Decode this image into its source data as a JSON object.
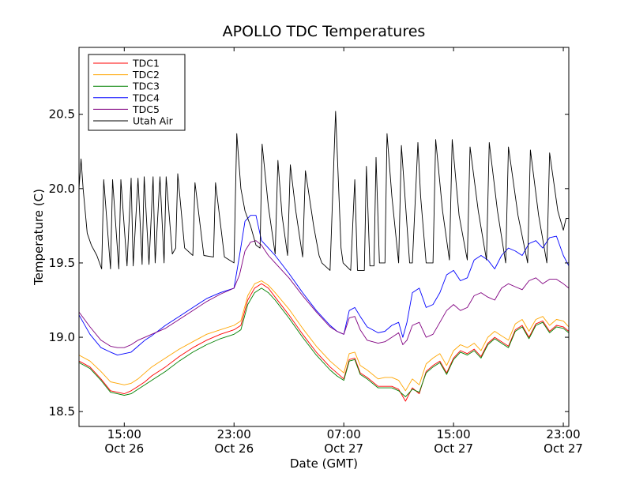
{
  "chart_data": {
    "type": "line",
    "title": "APOLLO TDC Temperatures",
    "xlabel": "Date (GMT)",
    "ylabel": "Temperature (C)",
    "xlim": [
      11.7,
      47.4
    ],
    "ylim": [
      18.4,
      20.95
    ],
    "x_unit": "hours since Oct 26 00:00 GMT",
    "x_ticks": [
      {
        "x": 15,
        "line1": "15:00",
        "line2": "Oct 26"
      },
      {
        "x": 23,
        "line1": "23:00",
        "line2": "Oct 26"
      },
      {
        "x": 31,
        "line1": "07:00",
        "line2": "Oct 27"
      },
      {
        "x": 39,
        "line1": "15:00",
        "line2": "Oct 27"
      },
      {
        "x": 47,
        "line1": "23:00",
        "line2": "Oct 27"
      }
    ],
    "y_ticks": [
      {
        "y": 18.5,
        "label": "18.5"
      },
      {
        "y": 19.0,
        "label": "19.0"
      },
      {
        "y": 19.5,
        "label": "19.5"
      },
      {
        "y": 20.0,
        "label": "20.0"
      },
      {
        "y": 20.5,
        "label": "20.5"
      }
    ],
    "legend_position": "top-left",
    "series": [
      {
        "name": "TDC1",
        "color": "#ff0000",
        "x": [
          11.7,
          12.5,
          13.3,
          14.0,
          14.5,
          15.0,
          15.5,
          16.0,
          16.5,
          17.0,
          18.0,
          19.0,
          20.0,
          21.0,
          22.0,
          23.0,
          23.5,
          24.0,
          24.5,
          25.0,
          25.5,
          26.0,
          27.0,
          28.0,
          29.0,
          30.0,
          30.5,
          31.0,
          31.4,
          31.8,
          32.2,
          32.7,
          33.5,
          34.0,
          34.5,
          35.0,
          35.5,
          36.0,
          36.5,
          37.0,
          37.5,
          38.0,
          38.5,
          39.0,
          39.5,
          40.0,
          40.5,
          41.0,
          41.5,
          42.0,
          42.5,
          43.0,
          43.5,
          44.0,
          44.5,
          45.0,
          45.5,
          46.0,
          46.5,
          47.0,
          47.4
        ],
        "y": [
          18.84,
          18.8,
          18.72,
          18.64,
          18.63,
          18.62,
          18.64,
          18.67,
          18.7,
          18.74,
          18.8,
          18.87,
          18.93,
          18.98,
          19.02,
          19.05,
          19.08,
          19.25,
          19.33,
          19.36,
          19.33,
          19.27,
          19.15,
          19.02,
          18.9,
          18.8,
          18.76,
          18.72,
          18.85,
          18.86,
          18.76,
          18.73,
          18.67,
          18.67,
          18.67,
          18.65,
          18.57,
          18.66,
          18.62,
          18.77,
          18.81,
          18.84,
          18.76,
          18.86,
          18.91,
          18.89,
          18.92,
          18.87,
          18.96,
          19.0,
          18.97,
          18.94,
          19.05,
          19.08,
          19.0,
          19.09,
          19.11,
          19.04,
          19.08,
          19.07,
          19.04
        ]
      },
      {
        "name": "TDC2",
        "color": "#ffa500",
        "x": [
          11.7,
          12.5,
          13.3,
          14.0,
          14.5,
          15.0,
          15.5,
          16.0,
          16.5,
          17.0,
          18.0,
          19.0,
          20.0,
          21.0,
          22.0,
          23.0,
          23.5,
          24.0,
          24.5,
          25.0,
          25.5,
          26.0,
          27.0,
          28.0,
          29.0,
          30.0,
          30.5,
          31.0,
          31.4,
          31.8,
          32.2,
          32.7,
          33.5,
          34.0,
          34.5,
          35.0,
          35.5,
          36.0,
          36.5,
          37.0,
          37.5,
          38.0,
          38.5,
          39.0,
          39.5,
          40.0,
          40.5,
          41.0,
          41.5,
          42.0,
          42.5,
          43.0,
          43.5,
          44.0,
          44.5,
          45.0,
          45.5,
          46.0,
          46.5,
          47.0,
          47.4
        ],
        "y": [
          18.88,
          18.84,
          18.77,
          18.7,
          18.69,
          18.68,
          18.69,
          18.72,
          18.76,
          18.8,
          18.86,
          18.92,
          18.97,
          19.02,
          19.05,
          19.08,
          19.11,
          19.28,
          19.36,
          19.38,
          19.35,
          19.3,
          19.19,
          19.06,
          18.94,
          18.84,
          18.8,
          18.76,
          18.89,
          18.9,
          18.81,
          18.78,
          18.72,
          18.73,
          18.73,
          18.71,
          18.64,
          18.72,
          18.68,
          18.82,
          18.86,
          18.89,
          18.81,
          18.91,
          18.95,
          18.93,
          18.96,
          18.91,
          19.0,
          19.04,
          19.01,
          18.98,
          19.09,
          19.12,
          19.04,
          19.12,
          19.14,
          19.08,
          19.12,
          19.11,
          19.07
        ]
      },
      {
        "name": "TDC3",
        "color": "#008000",
        "x": [
          11.7,
          12.5,
          13.3,
          14.0,
          14.5,
          15.0,
          15.5,
          16.0,
          16.5,
          17.0,
          18.0,
          19.0,
          20.0,
          21.0,
          22.0,
          23.0,
          23.5,
          24.0,
          24.5,
          25.0,
          25.5,
          26.0,
          27.0,
          28.0,
          29.0,
          30.0,
          30.5,
          31.0,
          31.4,
          31.8,
          32.2,
          32.7,
          33.5,
          34.0,
          34.5,
          35.0,
          35.5,
          36.0,
          36.5,
          37.0,
          37.5,
          38.0,
          38.5,
          39.0,
          39.5,
          40.0,
          40.5,
          41.0,
          41.5,
          42.0,
          42.5,
          43.0,
          43.5,
          44.0,
          44.5,
          45.0,
          45.5,
          46.0,
          46.5,
          47.0,
          47.4
        ],
        "y": [
          18.83,
          18.79,
          18.71,
          18.63,
          18.62,
          18.61,
          18.62,
          18.65,
          18.68,
          18.71,
          18.77,
          18.84,
          18.9,
          18.95,
          18.99,
          19.02,
          19.05,
          19.22,
          19.3,
          19.33,
          19.3,
          19.25,
          19.13,
          19.0,
          18.88,
          18.78,
          18.74,
          18.71,
          18.84,
          18.85,
          18.75,
          18.72,
          18.66,
          18.66,
          18.66,
          18.64,
          18.6,
          18.65,
          18.63,
          18.76,
          18.8,
          18.83,
          18.75,
          18.85,
          18.9,
          18.88,
          18.91,
          18.86,
          18.95,
          18.99,
          18.96,
          18.93,
          19.04,
          19.07,
          18.99,
          19.08,
          19.1,
          19.03,
          19.07,
          19.06,
          19.03
        ]
      },
      {
        "name": "TDC4",
        "color": "#0000ff",
        "x": [
          11.7,
          12.5,
          13.3,
          14.0,
          14.5,
          15.0,
          15.5,
          16.0,
          16.5,
          17.0,
          18.0,
          19.0,
          20.0,
          21.0,
          22.0,
          23.0,
          23.4,
          23.8,
          24.2,
          24.6,
          25.0,
          25.5,
          26.0,
          27.0,
          28.0,
          29.0,
          30.0,
          30.5,
          31.0,
          31.4,
          31.8,
          32.2,
          32.7,
          33.5,
          34.0,
          34.5,
          35.0,
          35.3,
          35.6,
          36.0,
          36.5,
          37.0,
          37.5,
          38.0,
          38.5,
          39.0,
          39.5,
          40.0,
          40.5,
          41.0,
          41.5,
          42.0,
          42.5,
          43.0,
          43.5,
          44.0,
          44.5,
          45.0,
          45.5,
          46.0,
          46.5,
          47.0,
          47.4
        ],
        "y": [
          19.15,
          19.02,
          18.93,
          18.9,
          18.88,
          18.89,
          18.9,
          18.94,
          18.98,
          19.01,
          19.08,
          19.14,
          19.2,
          19.26,
          19.3,
          19.33,
          19.55,
          19.78,
          19.82,
          19.82,
          19.65,
          19.6,
          19.55,
          19.43,
          19.3,
          19.18,
          19.08,
          19.04,
          19.02,
          19.18,
          19.2,
          19.14,
          19.07,
          19.03,
          19.04,
          19.08,
          19.1,
          19.0,
          19.1,
          19.3,
          19.33,
          19.2,
          19.22,
          19.3,
          19.42,
          19.45,
          19.38,
          19.4,
          19.52,
          19.55,
          19.52,
          19.46,
          19.55,
          19.6,
          19.58,
          19.55,
          19.63,
          19.65,
          19.6,
          19.67,
          19.68,
          19.55,
          19.48
        ]
      },
      {
        "name": "TDC5",
        "color": "#800080",
        "x": [
          11.7,
          12.5,
          13.3,
          14.0,
          14.5,
          15.0,
          15.5,
          16.0,
          16.5,
          17.0,
          18.0,
          19.0,
          20.0,
          21.0,
          22.0,
          23.0,
          23.4,
          23.8,
          24.2,
          24.6,
          25.0,
          25.5,
          26.0,
          27.0,
          28.0,
          29.0,
          30.0,
          30.5,
          31.0,
          31.4,
          31.8,
          32.2,
          32.7,
          33.5,
          34.0,
          34.5,
          35.0,
          35.3,
          35.6,
          36.0,
          36.5,
          37.0,
          37.5,
          38.0,
          38.5,
          39.0,
          39.5,
          40.0,
          40.5,
          41.0,
          41.5,
          42.0,
          42.5,
          43.0,
          43.5,
          44.0,
          44.5,
          45.0,
          45.5,
          46.0,
          46.5,
          47.0,
          47.4
        ],
        "y": [
          19.17,
          19.07,
          18.98,
          18.94,
          18.93,
          18.93,
          18.95,
          18.98,
          19.0,
          19.02,
          19.06,
          19.12,
          19.18,
          19.24,
          19.29,
          19.33,
          19.42,
          19.58,
          19.64,
          19.65,
          19.62,
          19.55,
          19.5,
          19.4,
          19.28,
          19.17,
          19.07,
          19.04,
          19.02,
          19.13,
          19.14,
          19.05,
          18.98,
          18.96,
          18.97,
          19.0,
          19.03,
          18.95,
          18.98,
          19.08,
          19.1,
          19.0,
          19.02,
          19.1,
          19.18,
          19.22,
          19.18,
          19.2,
          19.28,
          19.3,
          19.27,
          19.25,
          19.33,
          19.36,
          19.34,
          19.32,
          19.38,
          19.4,
          19.36,
          19.39,
          19.39,
          19.36,
          19.33
        ]
      },
      {
        "name": "Utah Air",
        "color": "#000000",
        "x": [
          11.7,
          11.85,
          12.0,
          12.3,
          12.6,
          13.0,
          13.35,
          13.5,
          14.0,
          14.15,
          14.6,
          14.75,
          15.2,
          15.5,
          15.65,
          16.0,
          16.3,
          16.45,
          16.8,
          17.1,
          17.25,
          17.6,
          17.9,
          18.05,
          18.5,
          18.75,
          18.9,
          19.4,
          20.0,
          20.15,
          20.8,
          21.5,
          21.65,
          22.3,
          23.0,
          23.2,
          23.5,
          23.8,
          24.2,
          24.6,
          24.9,
          25.05,
          25.5,
          26.0,
          26.2,
          26.5,
          26.9,
          27.1,
          27.5,
          28.0,
          28.2,
          28.8,
          29.2,
          29.4,
          30.0,
          30.4,
          30.8,
          30.95,
          31.5,
          31.8,
          32.0,
          32.5,
          32.65,
          32.9,
          33.2,
          33.35,
          33.6,
          34.0,
          34.15,
          34.5,
          35.0,
          35.2,
          35.8,
          36.0,
          36.4,
          36.6,
          37.0,
          37.5,
          37.7,
          38.2,
          38.7,
          38.9,
          39.4,
          40.0,
          40.2,
          40.8,
          41.4,
          41.6,
          42.2,
          42.8,
          43.0,
          43.7,
          44.4,
          44.6,
          45.2,
          45.8,
          46.0,
          46.6,
          47.0,
          47.2,
          47.4
        ],
        "y": [
          20.0,
          20.2,
          20.0,
          19.7,
          19.62,
          19.55,
          19.46,
          20.06,
          19.46,
          20.06,
          19.46,
          20.06,
          19.48,
          20.07,
          19.48,
          20.07,
          19.49,
          20.08,
          19.49,
          20.08,
          19.5,
          20.08,
          19.5,
          20.08,
          19.56,
          19.6,
          20.1,
          19.6,
          19.55,
          20.04,
          19.55,
          19.54,
          20.04,
          19.54,
          19.5,
          20.37,
          20.0,
          19.85,
          19.75,
          19.62,
          19.6,
          20.3,
          19.88,
          19.56,
          20.19,
          19.82,
          19.55,
          20.16,
          19.85,
          19.54,
          20.12,
          19.75,
          19.55,
          19.5,
          19.45,
          20.52,
          19.6,
          19.5,
          19.45,
          20.06,
          19.45,
          19.45,
          20.15,
          19.48,
          19.48,
          20.21,
          19.5,
          19.5,
          20.37,
          19.95,
          19.5,
          20.29,
          19.5,
          19.5,
          20.31,
          19.95,
          19.5,
          19.5,
          20.33,
          19.85,
          19.52,
          20.33,
          19.82,
          19.52,
          20.28,
          19.85,
          19.52,
          20.31,
          19.85,
          19.5,
          20.28,
          19.82,
          19.5,
          20.26,
          19.82,
          19.5,
          20.24,
          19.85,
          19.72,
          19.8,
          19.8
        ]
      }
    ]
  }
}
